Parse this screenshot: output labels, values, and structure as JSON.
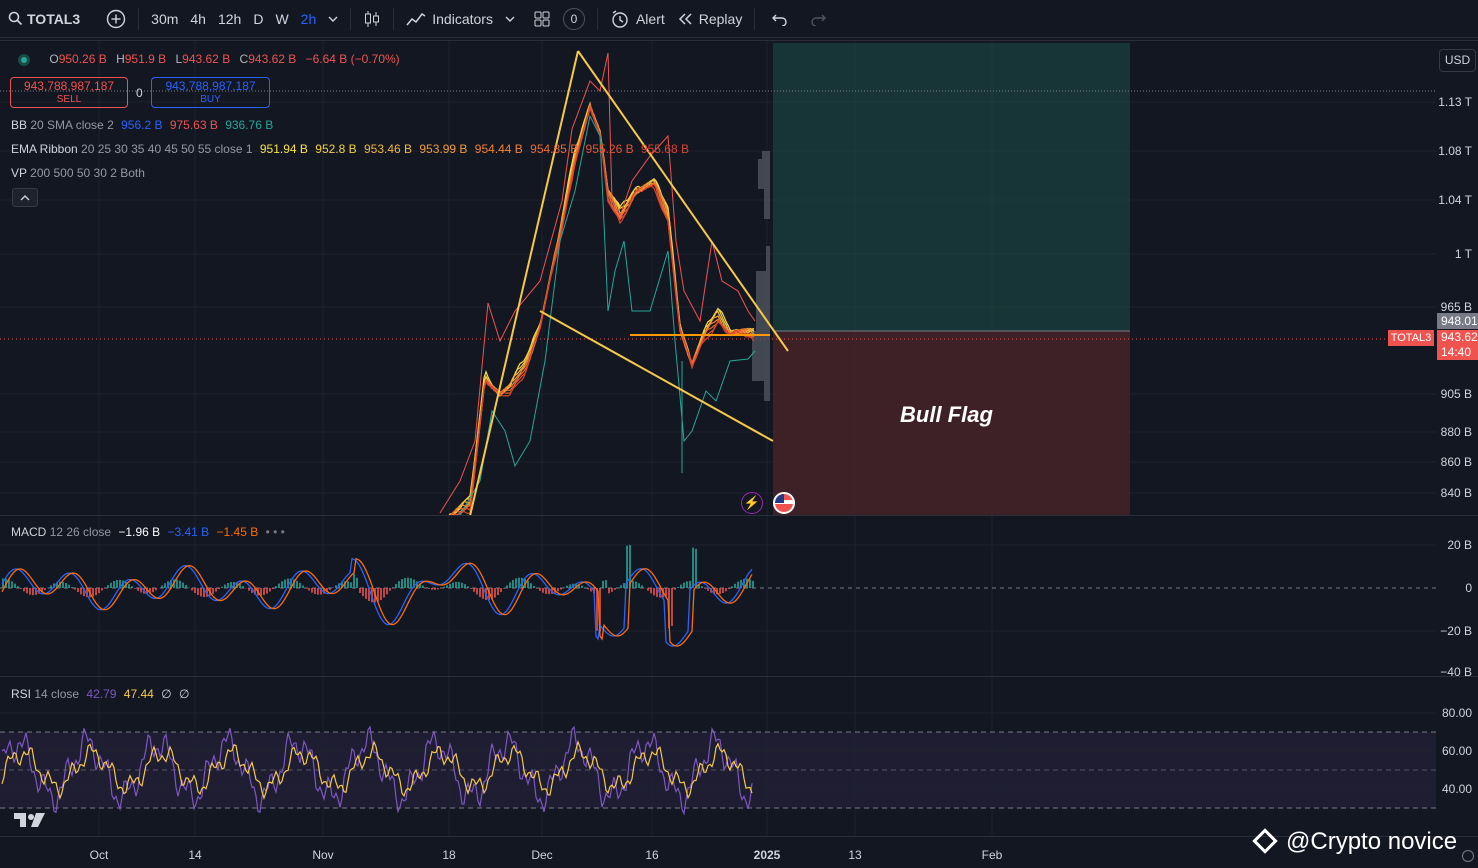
{
  "toolbar": {
    "symbol": "TOTAL3",
    "intervals": [
      "30m",
      "4h",
      "12h",
      "D",
      "W",
      "2h"
    ],
    "active_interval": "2h",
    "indicators_label": "Indicators",
    "badge": "0",
    "alert_label": "Alert",
    "replay_label": "Replay"
  },
  "legend": {
    "ohlc": {
      "o_label": "O",
      "o": "950.26 B",
      "h_label": "H",
      "h": "951.9 B",
      "l_label": "L",
      "l": "943.62 B",
      "c_label": "C",
      "c": "943.62 B",
      "chg": "−6.64 B (−0.70%)"
    },
    "sell": {
      "price": "943,788,987,187",
      "label": "SELL"
    },
    "spread": "0",
    "buy": {
      "price": "943,788,987,187",
      "label": "BUY"
    },
    "bb": {
      "name": "BB",
      "params": "20 SMA close 2",
      "v1": "956.2 B",
      "v2": "975.63 B",
      "v3": "936.76 B"
    },
    "ema": {
      "name": "EMA Ribbon",
      "params": "20 25 30 35 40 45 50 55 close 1",
      "values": [
        "951.94 B",
        "952.8 B",
        "953.46 B",
        "953.99 B",
        "954.44 B",
        "954.85 B",
        "955.26 B",
        "955.68 B"
      ]
    },
    "vp": {
      "name": "VP",
      "params": "200 500 50 30 2 Both"
    },
    "collapse": "^"
  },
  "price_axis": {
    "currency": "USD",
    "labels": [
      "1.13 T",
      "1.08 T",
      "1.04 T",
      "1 T",
      "965 B",
      "905 B",
      "880 B",
      "860 B",
      "840 B"
    ],
    "current_upper": "948.01",
    "current_price": "943.62",
    "countdown": "14:40",
    "symbol_tag": "TOTAL3"
  },
  "annotation": "Bull Flag",
  "macd": {
    "name": "MACD",
    "params": "12 26 close",
    "v1": "−1.96 B",
    "v2": "−3.41 B",
    "v3": "−1.45 B",
    "dots": "• • •",
    "axis": [
      "20 B",
      "0",
      "−20 B",
      "−40 B"
    ]
  },
  "rsi": {
    "name": "RSI",
    "params": "14 close",
    "v1": "42.79",
    "v2": "47.44",
    "v3": "∅",
    "v4": "∅",
    "axis": [
      "80.00",
      "60.00",
      "40.00"
    ]
  },
  "time_axis": [
    "Oct",
    "14",
    "Nov",
    "18",
    "Dec",
    "16",
    "2025",
    "13",
    "Feb"
  ],
  "watermark": "@Crypto novice",
  "logo": "TV",
  "colors": {
    "bg": "#131722",
    "up": "#26a69a",
    "down": "#ef5350",
    "accent": "#2962ff",
    "yellow": "#f7c948",
    "rsi": "#7e57c2",
    "orange": "#ff9800"
  }
}
